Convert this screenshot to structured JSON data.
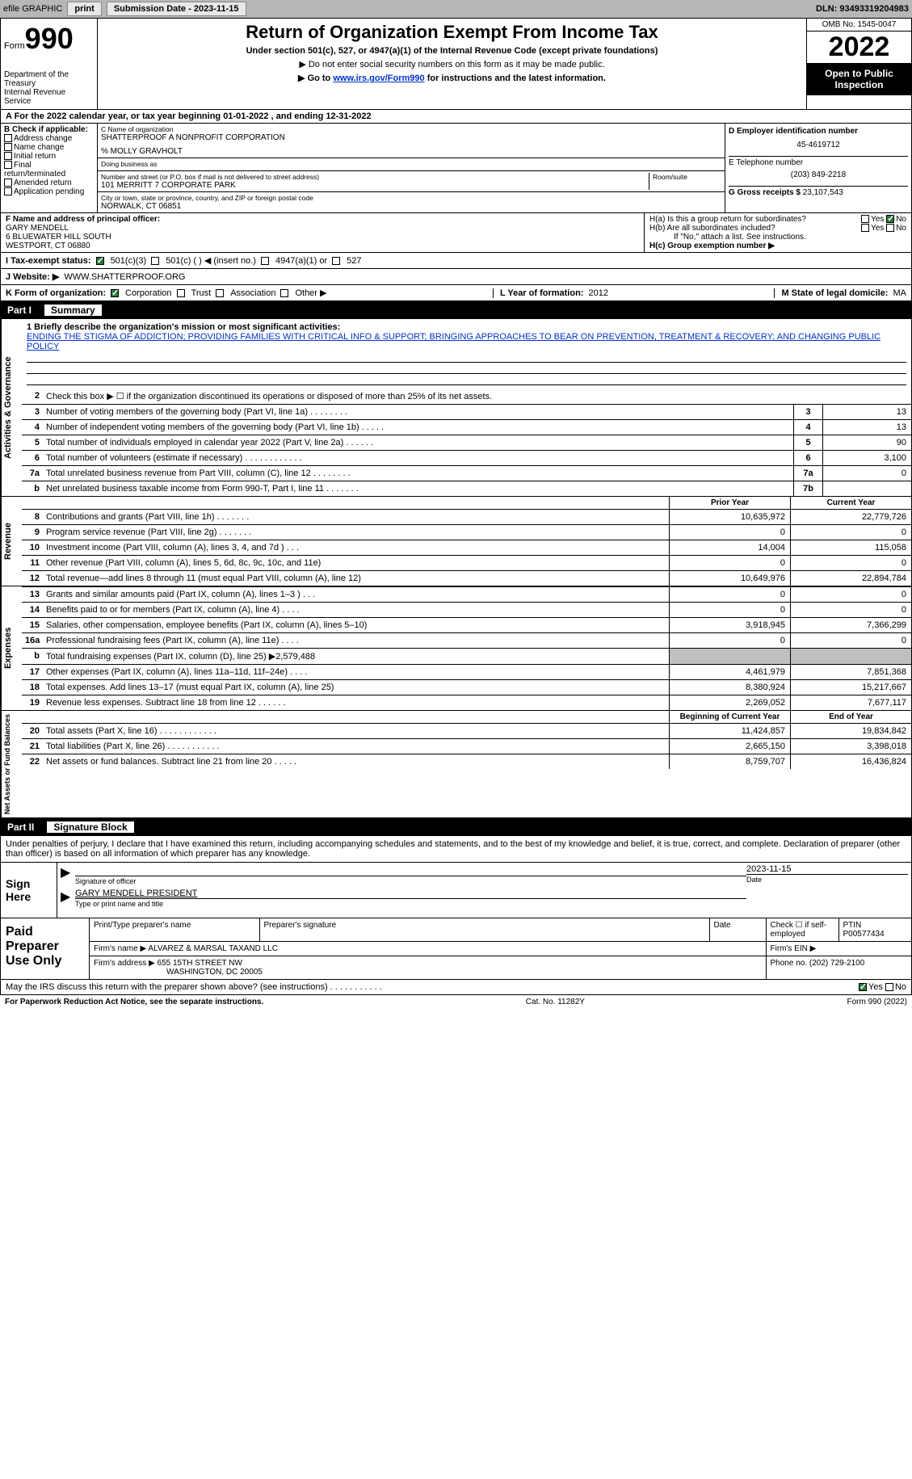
{
  "topbar": {
    "efile": "efile GRAPHIC",
    "print": "print",
    "sub_label": "Submission Date - 2023-11-15",
    "dln": "DLN: 93493319204983"
  },
  "header": {
    "form_word": "Form",
    "form_num": "990",
    "dept": "Department of the Treasury\nInternal Revenue Service",
    "title": "Return of Organization Exempt From Income Tax",
    "sub1": "Under section 501(c), 527, or 4947(a)(1) of the Internal Revenue Code (except private foundations)",
    "sub2": "▶ Do not enter social security numbers on this form as it may be made public.",
    "sub3a": "▶ Go to ",
    "sub3_link": "www.irs.gov/Form990",
    "sub3b": " for instructions and the latest information.",
    "omb": "OMB No. 1545-0047",
    "year": "2022",
    "open": "Open to Public Inspection"
  },
  "rowA": "A   For the 2022 calendar year, or tax year beginning 01-01-2022     , and ending 12-31-2022",
  "colB": {
    "label": "B Check if applicable:",
    "items": [
      "Address change",
      "Name change",
      "Initial return",
      "Final return/terminated",
      "Amended return",
      "Application pending"
    ]
  },
  "colC": {
    "name_lbl": "C Name of organization",
    "name": "SHATTERPROOF A NONPROFIT CORPORATION",
    "care": "% MOLLY GRAVHOLT",
    "dba_lbl": "Doing business as",
    "addr_lbl": "Number and street (or P.O. box if mail is not delivered to street address)",
    "suite_lbl": "Room/suite",
    "addr": "101 MERRITT 7 CORPORATE PARK",
    "city_lbl": "City or town, state or province, country, and ZIP or foreign postal code",
    "city": "NORWALK, CT  06851"
  },
  "colD": {
    "ein_lbl": "D Employer identification number",
    "ein": "45-4619712",
    "tel_lbl": "E Telephone number",
    "tel": "(203) 849-2218",
    "gross_lbl": "G Gross receipts $",
    "gross": "23,107,543"
  },
  "blockF": {
    "f_lbl": "F  Name and address of principal officer:",
    "f_name": "GARY MENDELL",
    "f_addr1": "6 BLUEWATER HILL SOUTH",
    "f_addr2": "WESTPORT, CT  06880",
    "ha": "H(a)  Is this a group return for subordinates?",
    "hb": "H(b)  Are all subordinates included?",
    "hb_note": "If \"No,\" attach a list. See instructions.",
    "hc": "H(c)  Group exemption number ▶",
    "yes": "Yes",
    "no": "No"
  },
  "rowI": {
    "lbl": "I    Tax-exempt status:",
    "o1": "501(c)(3)",
    "o2": "501(c) (   ) ◀ (insert no.)",
    "o3": "4947(a)(1) or",
    "o4": "527"
  },
  "rowJ": {
    "lbl": "J   Website: ▶",
    "val": "WWW.SHATTERPROOF.ORG"
  },
  "rowK": {
    "lbl": "K Form of organization:",
    "o1": "Corporation",
    "o2": "Trust",
    "o3": "Association",
    "o4": "Other ▶",
    "l_lbl": "L Year of formation:",
    "l_val": "2012",
    "m_lbl": "M State of legal domicile:",
    "m_val": "MA"
  },
  "part1": {
    "num": "Part I",
    "title": "Summary"
  },
  "side": {
    "ag": "Activities & Governance",
    "rev": "Revenue",
    "exp": "Expenses",
    "na": "Net Assets or Fund Balances"
  },
  "mission": {
    "lbl": "1   Briefly describe the organization's mission or most significant activities:",
    "txt": "ENDING THE STIGMA OF ADDICTION; PROVIDING FAMILIES WITH CRITICAL INFO & SUPPORT; BRINGING APPROACHES TO BEAR ON PREVENTION, TREATMENT & RECOVERY; AND CHANGING PUBLIC POLICY"
  },
  "line2txt": "Check this box ▶ ☐  if the organization discontinued its operations or disposed of more than 25% of its net assets.",
  "ag_lines": [
    {
      "n": "3",
      "d": "Number of voting members of the governing body (Part VI, line 1a)   .    .    .    .    .    .    .    .",
      "box": "3",
      "v": "13"
    },
    {
      "n": "4",
      "d": "Number of independent voting members of the governing body (Part VI, line 1b)   .    .    .    .    .",
      "box": "4",
      "v": "13"
    },
    {
      "n": "5",
      "d": "Total number of individuals employed in calendar year 2022 (Part V, line 2a)   .    .    .    .    .    .",
      "box": "5",
      "v": "90"
    },
    {
      "n": "6",
      "d": "Total number of volunteers (estimate if necessary)    .    .    .    .    .    .    .    .    .    .    .    .",
      "box": "6",
      "v": "3,100"
    },
    {
      "n": "7a",
      "d": "Total unrelated business revenue from Part VIII, column (C), line 12   .    .    .    .    .    .    .    .",
      "box": "7a",
      "v": "0"
    },
    {
      "n": "b",
      "d": "Net unrelated business taxable income from Form 990-T, Part I, line 11   .    .    .    .    .    .    .",
      "box": "7b",
      "v": ""
    }
  ],
  "col_hdr": {
    "py": "Prior Year",
    "cy": "Current Year"
  },
  "rev_lines": [
    {
      "n": "8",
      "d": "Contributions and grants (Part VIII, line 1h)   .    .    .    .    .    .    .",
      "py": "10,635,972",
      "cy": "22,779,726"
    },
    {
      "n": "9",
      "d": "Program service revenue (Part VIII, line 2g)   .    .    .    .    .    .    .",
      "py": "0",
      "cy": "0"
    },
    {
      "n": "10",
      "d": "Investment income (Part VIII, column (A), lines 3, 4, and 7d )   .    .    .",
      "py": "14,004",
      "cy": "115,058"
    },
    {
      "n": "11",
      "d": "Other revenue (Part VIII, column (A), lines 5, 6d, 8c, 9c, 10c, and 11e)",
      "py": "0",
      "cy": "0"
    },
    {
      "n": "12",
      "d": "Total revenue—add lines 8 through 11 (must equal Part VIII, column (A), line 12)",
      "py": "10,649,976",
      "cy": "22,894,784"
    }
  ],
  "exp_lines": [
    {
      "n": "13",
      "d": "Grants and similar amounts paid (Part IX, column (A), lines 1–3 )   .    .    .",
      "py": "0",
      "cy": "0"
    },
    {
      "n": "14",
      "d": "Benefits paid to or for members (Part IX, column (A), line 4)   .    .    .    .",
      "py": "0",
      "cy": "0"
    },
    {
      "n": "15",
      "d": "Salaries, other compensation, employee benefits (Part IX, column (A), lines 5–10)",
      "py": "3,918,945",
      "cy": "7,366,299"
    },
    {
      "n": "16a",
      "d": "Professional fundraising fees (Part IX, column (A), line 11e)   .    .    .    .",
      "py": "0",
      "cy": "0"
    },
    {
      "n": "b",
      "d": "Total fundraising expenses (Part IX, column (D), line 25) ▶2,579,488",
      "py": "",
      "cy": "",
      "shade": true
    },
    {
      "n": "17",
      "d": "Other expenses (Part IX, column (A), lines 11a–11d, 11f–24e)   .    .    .    .",
      "py": "4,461,979",
      "cy": "7,851,368"
    },
    {
      "n": "18",
      "d": "Total expenses. Add lines 13–17 (must equal Part IX, column (A), line 25)",
      "py": "8,380,924",
      "cy": "15,217,667"
    },
    {
      "n": "19",
      "d": "Revenue less expenses. Subtract line 18 from line 12   .    .    .    .    .    .",
      "py": "2,269,052",
      "cy": "7,677,117"
    }
  ],
  "na_hdr": {
    "py": "Beginning of Current Year",
    "cy": "End of Year"
  },
  "na_lines": [
    {
      "n": "20",
      "d": "Total assets (Part X, line 16)   .    .    .    .    .    .    .    .    .    .    .    .",
      "py": "11,424,857",
      "cy": "19,834,842"
    },
    {
      "n": "21",
      "d": "Total liabilities (Part X, line 26)   .    .    .    .    .    .    .    .    .    .    .",
      "py": "2,665,150",
      "cy": "3,398,018"
    },
    {
      "n": "22",
      "d": "Net assets or fund balances. Subtract line 21 from line 20   .    .    .    .    .",
      "py": "8,759,707",
      "cy": "16,436,824"
    }
  ],
  "part2": {
    "num": "Part II",
    "title": "Signature Block"
  },
  "penalties": "Under penalties of perjury, I declare that I have examined this return, including accompanying schedules and statements, and to the best of my knowledge and belief, it is true, correct, and complete. Declaration of preparer (other than officer) is based on all information of which preparer has any knowledge.",
  "sign": {
    "lbl": "Sign Here",
    "sig_lbl": "Signature of officer",
    "date_lbl": "Date",
    "date": "2023-11-15",
    "name": "GARY MENDELL  PRESIDENT",
    "name_lbl": "Type or print name and title"
  },
  "paid": {
    "lbl": "Paid Preparer Use Only",
    "h1": "Print/Type preparer's name",
    "h2": "Preparer's signature",
    "h3": "Date",
    "h4": "Check ☐ if self-employed",
    "h5_lbl": "PTIN",
    "h5": "P00577434",
    "firm_lbl": "Firm's name      ▶",
    "firm": "ALVAREZ & MARSAL TAXAND LLC",
    "ein_lbl": "Firm's EIN ▶",
    "addr_lbl": "Firm's address ▶",
    "addr1": "655 15TH STREET NW",
    "addr2": "WASHINGTON, DC  20005",
    "phone_lbl": "Phone no.",
    "phone": "(202) 729-2100"
  },
  "bottom": {
    "q": "May the IRS discuss this return with the preparer shown above? (see instructions)   .    .    .    .    .    .    .    .    .    .    .",
    "yes": "Yes",
    "no": "No"
  },
  "footer": {
    "l": "For Paperwork Reduction Act Notice, see the separate instructions.",
    "m": "Cat. No. 11282Y",
    "r": "Form 990 (2022)"
  }
}
